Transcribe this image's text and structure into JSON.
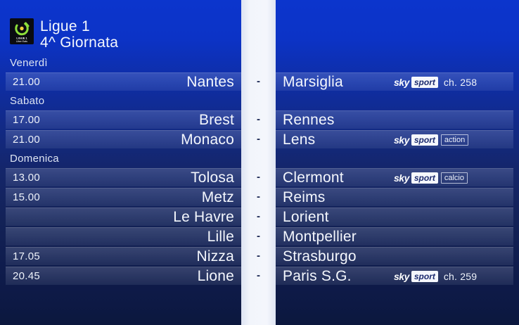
{
  "header": {
    "league": "Ligue 1",
    "round": "4^ Giornata",
    "logo": {
      "competition": "LIGUE 1",
      "sponsor": "Uber Eats"
    }
  },
  "separator": "-",
  "colors": {
    "background_top": "#0c35cd",
    "background_bottom": "#0b173d",
    "strip": "#f2f5fb",
    "row_highlight": "rgba(228,238,255,0.13)",
    "sport_box_text": "#1b2a6e",
    "logo_green": "#8ddf3a",
    "logo_yellow": "#f3d13c"
  },
  "sections": [
    {
      "day": "Venerdì",
      "matches": [
        {
          "time": "21.00",
          "home": "Nantes",
          "away": "Marsiglia",
          "badge": {
            "brand": "sky",
            "box": "sport",
            "extra": "",
            "channel": "ch. 258"
          }
        }
      ]
    },
    {
      "day": "Sabato",
      "matches": [
        {
          "time": "17.00",
          "home": "Brest",
          "away": "Rennes",
          "badge": null
        },
        {
          "time": "21.00",
          "home": "Monaco",
          "away": "Lens",
          "badge": {
            "brand": "sky",
            "box": "sport",
            "extra": "action",
            "channel": ""
          }
        }
      ]
    },
    {
      "day": "Domenica",
      "matches": [
        {
          "time": "13.00",
          "home": "Tolosa",
          "away": "Clermont",
          "badge": {
            "brand": "sky",
            "box": "sport",
            "extra": "calcio",
            "channel": ""
          }
        },
        {
          "time": "15.00",
          "home": "Metz",
          "away": "Reims",
          "badge": null
        },
        {
          "time": "",
          "home": "Le Havre",
          "away": "Lorient",
          "badge": null
        },
        {
          "time": "",
          "home": "Lille",
          "away": "Montpellier",
          "badge": null
        },
        {
          "time": "17.05",
          "home": "Nizza",
          "away": "Strasburgo",
          "badge": null
        },
        {
          "time": "20.45",
          "home": "Lione",
          "away": "Paris S.G.",
          "badge": {
            "brand": "sky",
            "box": "sport",
            "extra": "",
            "channel": "ch. 259"
          }
        }
      ]
    }
  ]
}
